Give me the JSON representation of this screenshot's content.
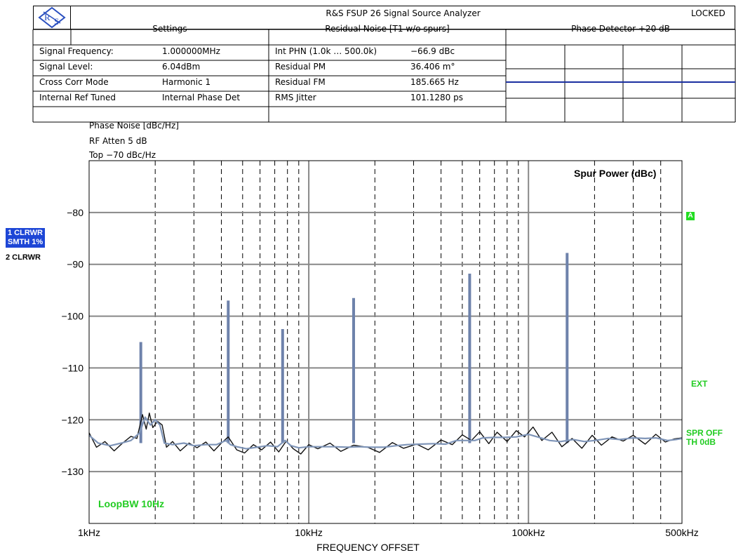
{
  "header": {
    "title": "R&S FSUP 26 Signal Source Analyzer",
    "status": "LOCKED",
    "settings_title": "Settings",
    "noise_title": "Residual Noise [T1 w/o spurs]",
    "detector_title": "Phase Detector +20 dB",
    "settings": [
      {
        "label": "Signal Frequency:",
        "value": "1.000000MHz"
      },
      {
        "label": "Signal Level:",
        "value": "6.04dBm"
      },
      {
        "label": "Cross Corr Mode",
        "value": "Harmonic 1"
      },
      {
        "label": "Internal Ref Tuned",
        "value": "Internal Phase Det"
      }
    ],
    "noise": [
      {
        "label": "Int PHN (1.0k … 500.0k)",
        "value": "−66.9 dBc"
      },
      {
        "label": "Residual PM",
        "value": "36.406 m°"
      },
      {
        "label": "Residual FM",
        "value": "185.665 Hz"
      },
      {
        "label": "RMS Jitter",
        "value": "101.1280 ps"
      }
    ]
  },
  "plot_info": {
    "ylabel": "Phase Noise [dBc/Hz]",
    "rf_atten": "RF Atten     5 dB",
    "top": "Top  −70 dBc/Hz"
  },
  "traces": {
    "mode1_line1": "1 CLRWR",
    "mode1_line2": "SMTH 1%",
    "mode2": "2 CLRWR"
  },
  "annotations": {
    "spur_power": "Spur Power (dBc)",
    "marker": "A",
    "ext": "EXT",
    "spr_off": "SPR OFF",
    "th": "TH 0dB",
    "loop_bw": "LoopBW 10Hz"
  },
  "colors": {
    "trace_raw": "#111111",
    "trace_smooth": "#7f95b8",
    "spur": "#6e82ab",
    "annotation_green": "#22cc22"
  },
  "chart_data": {
    "type": "line",
    "xlabel": "FREQUENCY OFFSET",
    "ylabel": "Phase Noise [dBc/Hz]",
    "xscale": "log",
    "xlim": [
      1000,
      500000
    ],
    "ylim": [
      -140,
      -70
    ],
    "x_ticks": [
      {
        "value": 1000,
        "label": "1kHz"
      },
      {
        "value": 10000,
        "label": "10kHz"
      },
      {
        "value": 100000,
        "label": "100kHz"
      },
      {
        "value": 500000,
        "label": "500kHz"
      }
    ],
    "y_ticks": [
      {
        "value": -80,
        "label": "−80"
      },
      {
        "value": -90,
        "label": "−90"
      },
      {
        "value": -100,
        "label": "−100"
      },
      {
        "value": -110,
        "label": "−110"
      },
      {
        "value": -120,
        "label": "−120"
      },
      {
        "value": -130,
        "label": "−130"
      }
    ],
    "grid": true,
    "spurs": [
      {
        "freq": 1720,
        "level": -105
      },
      {
        "freq": 4300,
        "level": -97
      },
      {
        "freq": 7600,
        "level": -102.5
      },
      {
        "freq": 16000,
        "level": -96.5
      },
      {
        "freq": 54000,
        "level": -91.8
      },
      {
        "freq": 150000,
        "level": -87.8
      }
    ],
    "series": [
      {
        "x": [
          1000,
          1100,
          1250,
          1400,
          1550,
          1700,
          1800,
          1900,
          2000,
          2100,
          2200,
          2400,
          2700,
          3000,
          3400,
          3800,
          4200,
          4400,
          4700,
          5200,
          5800,
          6500,
          7200,
          7800,
          8300,
          9000,
          10000,
          11500,
          13000,
          15000,
          17000,
          19000,
          22000,
          25000,
          28000,
          32000,
          37000,
          42000,
          47000,
          52000,
          57000,
          62000,
          70000,
          78000,
          88000,
          100000,
          110000,
          125000,
          140000,
          160000,
          180000,
          200000,
          230000,
          260000,
          300000,
          340000,
          380000,
          430000,
          470000,
          500000
        ],
        "y": [
          -123,
          -124.5,
          -125,
          -124.5,
          -124,
          -122.5,
          -119.5,
          -121,
          -120,
          -121,
          -124.5,
          -124.8,
          -124.5,
          -125,
          -124.8,
          -124.8,
          -124,
          -124.8,
          -125.2,
          -125.6,
          -125.3,
          -125,
          -125.2,
          -124,
          -125,
          -125.4,
          -125.2,
          -125.2,
          -125.2,
          -125.3,
          -125.2,
          -125.3,
          -125.3,
          -125,
          -124.8,
          -124.7,
          -124.6,
          -124.7,
          -124,
          -124,
          -124,
          -123.5,
          -123.4,
          -123.4,
          -123.3,
          -122.8,
          -123.3,
          -124,
          -124.2,
          -123.8,
          -124.2,
          -124,
          -123.6,
          -123.8,
          -123.5,
          -123.6,
          -123.5,
          -124,
          -123.8,
          -123.6
        ]
      },
      {
        "x": [
          1000,
          1080,
          1180,
          1300,
          1420,
          1550,
          1650,
          1750,
          1820,
          1880,
          1950,
          2050,
          2150,
          2250,
          2400,
          2600,
          2850,
          3100,
          3400,
          3700,
          4000,
          4300,
          4700,
          5100,
          5600,
          6100,
          6700,
          7300,
          7900,
          8500,
          9200,
          10000,
          11000,
          12500,
          14000,
          16000,
          18500,
          21000,
          24000,
          27000,
          31000,
          35000,
          40000,
          45000,
          50000,
          55000,
          60000,
          66000,
          72000,
          80000,
          88000,
          96000,
          105000,
          115000,
          128000,
          142000,
          158000,
          175000,
          195000,
          215000,
          240000,
          270000,
          300000,
          340000,
          380000,
          420000,
          460000,
          500000
        ],
        "y": [
          -122.5,
          -125.3,
          -124.2,
          -126,
          -124.5,
          -123.2,
          -123.6,
          -119,
          -121.8,
          -118.7,
          -121.5,
          -120.3,
          -121,
          -125.3,
          -124.2,
          -126,
          -124.5,
          -125.4,
          -124.3,
          -126,
          -124.5,
          -123.3,
          -125.8,
          -126.4,
          -124.8,
          -125.8,
          -124.3,
          -126.2,
          -124.1,
          -125.6,
          -126.6,
          -124.8,
          -125.6,
          -124.5,
          -126.1,
          -124.9,
          -125.3,
          -126.3,
          -124.4,
          -125.5,
          -124.7,
          -125.8,
          -123.9,
          -124.8,
          -122.9,
          -124,
          -122.3,
          -124.6,
          -122.4,
          -124.2,
          -122.1,
          -123.3,
          -121.4,
          -124,
          -122.4,
          -125.2,
          -123.6,
          -125.5,
          -123,
          -124.9,
          -123.3,
          -124.1,
          -123,
          -124.7,
          -122.8,
          -124.3,
          -123.7,
          -123.5
        ]
      }
    ]
  }
}
